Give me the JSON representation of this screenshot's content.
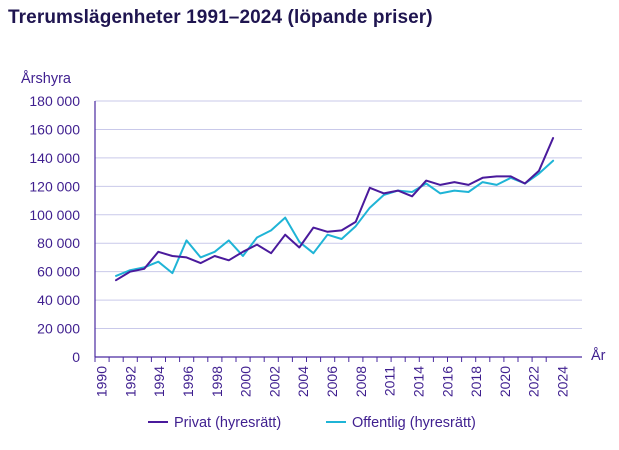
{
  "chart_data": {
    "type": "line",
    "title": "Trerumslägenheter 1991–2024 (löpande priser)",
    "ylabel": "Årshyra",
    "xlabel": "År",
    "ylim": [
      0,
      180000
    ],
    "yticks": [
      0,
      20000,
      40000,
      60000,
      80000,
      100000,
      120000,
      140000,
      160000,
      180000
    ],
    "ytick_labels": [
      "0",
      "20 000",
      "40 000",
      "60 000",
      "80 000",
      "100 000",
      "120 000",
      "140 000",
      "160 000",
      "180 000"
    ],
    "x_tick_labels": [
      "1990",
      "1992",
      "1994",
      "1996",
      "1998",
      "2000",
      "2002",
      "2004",
      "2006",
      "2008",
      "2011",
      "2014",
      "2016",
      "2018",
      "2020",
      "2022",
      "2024"
    ],
    "grid": true,
    "legend_position": "bottom",
    "series": [
      {
        "name": "Privat (hyresrätt)",
        "color": "#4a1a9c",
        "values": [
          54000,
          60000,
          62000,
          74000,
          71000,
          70000,
          66000,
          71000,
          68000,
          74000,
          79000,
          73000,
          86000,
          77000,
          91000,
          88000,
          89000,
          95000,
          119000,
          115000,
          117000,
          113000,
          124000,
          121000,
          123000,
          121000,
          126000,
          127000,
          127000,
          122000,
          131000,
          154000
        ]
      },
      {
        "name": "Offentlig (hyresrätt)",
        "color": "#1fb4d6",
        "values": [
          57000,
          61000,
          63000,
          67000,
          59000,
          82000,
          70000,
          74000,
          82000,
          71000,
          84000,
          89000,
          98000,
          81000,
          73000,
          86000,
          83000,
          92000,
          105000,
          114000,
          117000,
          116000,
          122000,
          115000,
          117000,
          116000,
          123000,
          121000,
          126000,
          122000,
          129000,
          138000
        ]
      }
    ]
  }
}
